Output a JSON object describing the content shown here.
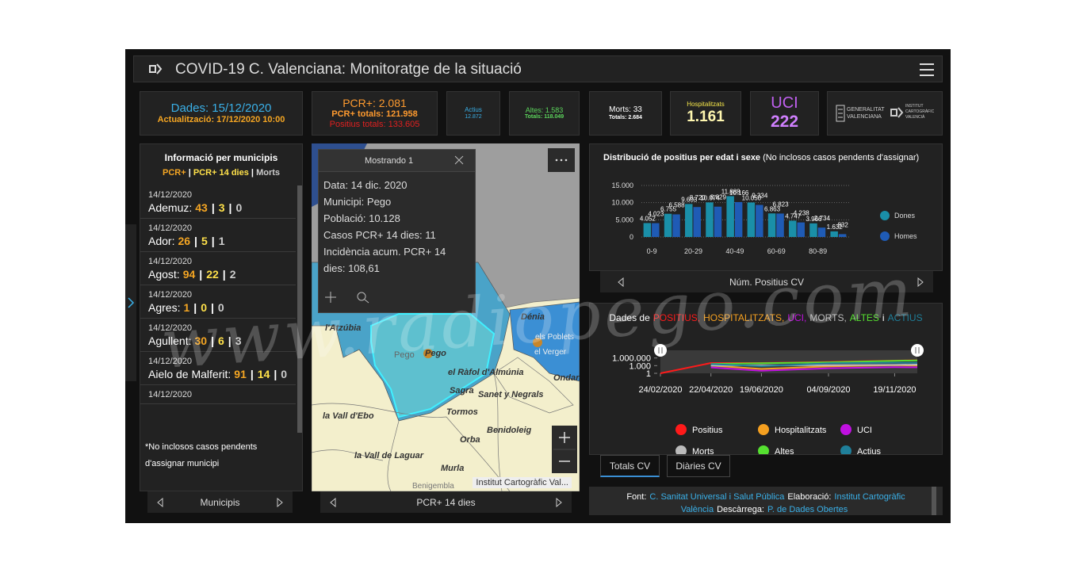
{
  "header": {
    "title": "COVID-19 C. Valenciana: Monitoratge de la situació"
  },
  "tiles": {
    "date": "Dades: 15/12/2020",
    "updated": "Actualització: 17/12/2020 10:00",
    "pcr": "PCR+: 2.081",
    "pcr_total": "PCR+ totals: 121.958",
    "positive_total": "Positius totals: 133.605",
    "active_label": "Actius",
    "active_value": "12.872",
    "discharged": "Altes: 1.583",
    "discharged_total": "Totals: 118.049",
    "deaths": "Morts: 33",
    "deaths_total": "Totals: 2.684",
    "hosp_label": "Hospitalitzats",
    "hosp_value": "1.161",
    "icu_label": "UCI",
    "icu_value": "222",
    "logo_gva": [
      "GENERALITAT",
      "VALENCIANA"
    ],
    "logo_icv": [
      "INSTITUT",
      "CARTOGRÀFIC",
      "VALENCIÀ"
    ]
  },
  "municipalities": {
    "title": "Informació per municipis",
    "legend": [
      "PCR+",
      "PCR+ 14 dies",
      "Morts"
    ],
    "separator": "|",
    "items": [
      {
        "date": "14/12/2020",
        "name": "Ademuz:",
        "pcr": 43,
        "pcr14": 3,
        "deaths": 0
      },
      {
        "date": "14/12/2020",
        "name": "Ador:",
        "pcr": 26,
        "pcr14": 5,
        "deaths": 1
      },
      {
        "date": "14/12/2020",
        "name": "Agost:",
        "pcr": 94,
        "pcr14": 22,
        "deaths": 2
      },
      {
        "date": "14/12/2020",
        "name": "Agres:",
        "pcr": 1,
        "pcr14": 0,
        "deaths": 0
      },
      {
        "date": "14/12/2020",
        "name": "Agullent:",
        "pcr": 30,
        "pcr14": 6,
        "deaths": 3
      },
      {
        "date": "14/12/2020",
        "name": "Aielo de Malferit:",
        "pcr": 91,
        "pcr14": 14,
        "deaths": 0
      },
      {
        "date": "14/12/2020"
      }
    ],
    "note": "*No inclosos casos pendents d'assignar municipi",
    "footer": "Municipis"
  },
  "map": {
    "popup_header": "Mostrando 1",
    "popup_lines": [
      "Data: 14 dic. 2020",
      "Municipi: Pego",
      "Població: 10.128",
      "Casos PCR+ 14 dies: 11",
      "Incidència acum. PCR+ 14 dies: 108,61"
    ],
    "labels": [
      "l'Atzúbia",
      "Pego",
      "Dénia",
      "els Poblets",
      "el Verger",
      "Ondara",
      "el Ràfol d'Almúnia",
      "Sagra",
      "Sanet y Negrals",
      "Tormos",
      "la Vall d'Ebo",
      "Orba",
      "Benidoleig",
      "la Vall de Laguar",
      "Murla",
      "Benigembla"
    ],
    "attribution": "Institut Cartogràfic Val...",
    "footer": "PCR+ 14 dies"
  },
  "chart_data": [
    {
      "type": "bar",
      "title": "Distribució de positius per edat i sexe",
      "subtitle": "(No inclosos casos pendents d'assignar)",
      "categories": [
        "0-9",
        null,
        "20-29",
        null,
        "40-49",
        null,
        "60-69",
        null,
        "80-89",
        null
      ],
      "series": [
        {
          "name": "Dones",
          "color": "#1a8fa8",
          "values": [
            4052,
            6755,
            9603,
            10074,
            11888,
            10050,
            6863,
            4747,
            3966,
            1632
          ],
          "value_labels": [
            "4.052",
            "6.755",
            "9.603",
            "10.074",
            "11.888",
            "10.050",
            "6.863",
            "4.747",
            "3.966",
            "1.632"
          ]
        },
        {
          "name": "Homes",
          "color": "#1f5bb5",
          "values": [
            4023,
            6588,
            8720,
            8829,
            10166,
            9334,
            6823,
            4238,
            2734,
            832
          ],
          "value_labels": [
            "4.023",
            "6.588",
            "8.720",
            "8.829",
            "10.166",
            "9.334",
            "6.823",
            "4.238",
            "2.734",
            "832"
          ]
        }
      ],
      "ylim": [
        0,
        15000
      ],
      "yticks": [
        0,
        {
          "value": 5000,
          "label": "5.000"
        },
        {
          "value": 10000,
          "label": "10.000"
        },
        {
          "value": 15000,
          "label": "15.000"
        }
      ],
      "grid": true,
      "footer": "Núm. Positius CV"
    },
    {
      "type": "line",
      "title": [
        "Dades de",
        "POSITIUS,",
        "HOSPITALITZATS,",
        "UCI,",
        "MORTS,",
        "ALTES",
        "i",
        "ACTIUS"
      ],
      "x": [
        "24/02/2020",
        "22/04/2020",
        "19/06/2020",
        "04/09/2020",
        "19/11/2020",
        "15/12/2020"
      ],
      "series": [
        {
          "name": "Positius",
          "color": "#ff1a1a",
          "values": [
            1,
            10500,
            11200,
            29000,
            95000,
            133605
          ]
        },
        {
          "name": "Hospitalitzats",
          "color": "#f5a020",
          "values": [
            null,
            1000,
            50,
            500,
            1500,
            1161
          ]
        },
        {
          "name": "UCI",
          "color": "#c010e0",
          "values": [
            null,
            200,
            10,
            100,
            250,
            222
          ]
        },
        {
          "name": "Morts",
          "color": "#bbbbbb",
          "values": [
            null,
            1100,
            1400,
            1500,
            1900,
            2684
          ]
        },
        {
          "name": "Altes",
          "color": "#55e030",
          "values": [
            null,
            5000,
            9000,
            20000,
            80000,
            118049
          ]
        },
        {
          "name": "Actius",
          "color": "#1f7f9a",
          "values": [
            null,
            4000,
            600,
            8000,
            14000,
            12872
          ]
        }
      ],
      "xlim": [
        "24/02/2020",
        "15/12/2020"
      ],
      "xticks": [
        "24/02/2020",
        "22/04/2020",
        "19/06/2020",
        "04/09/2020",
        "19/11/2020"
      ],
      "ylim": [
        1,
        1000000000
      ],
      "log_scale": true,
      "yticks": [
        1,
        {
          "value": 1000,
          "label": "1.000"
        },
        {
          "value": 1000000,
          "label": "1.000.000"
        }
      ],
      "tabs": [
        "Totals CV",
        "Diàries CV"
      ]
    }
  ],
  "sources": [
    "Font:",
    "C. Sanitat Universal i Salut Pública",
    "Elaboració:",
    "Institut Cartogràfic València",
    "Descàrrega:",
    "P. de Dades Obertes"
  ],
  "watermark": "www.radiopego.com"
}
